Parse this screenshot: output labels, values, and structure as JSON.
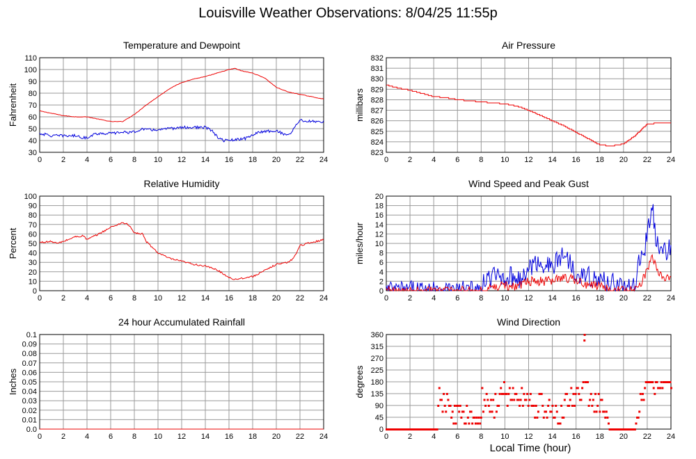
{
  "page": {
    "title": "Louisville Weather Observations: 8/04/25 11:55p",
    "xlabel": "Local Time (hour)"
  },
  "colors": {
    "red": "#ee0000",
    "blue": "#0000dd",
    "grid": "#999999"
  },
  "chart_data": [
    {
      "type": "line",
      "title": "Temperature and Dewpoint",
      "ylabel": "Fahrenheit",
      "xlim": [
        0,
        24
      ],
      "ylim": [
        30,
        110
      ],
      "xticks": [
        0,
        2,
        4,
        6,
        8,
        10,
        12,
        14,
        16,
        18,
        20,
        22,
        24
      ],
      "yticks": [
        30,
        40,
        50,
        60,
        70,
        80,
        90,
        100,
        110
      ],
      "grid": true,
      "series": [
        {
          "color": "red",
          "noise": 0.2,
          "x": [
            0,
            1,
            2,
            3,
            4,
            5,
            6,
            7,
            8,
            9,
            10,
            11,
            12,
            13,
            14,
            15,
            16,
            16.5,
            17,
            18,
            19,
            20,
            20.5,
            21,
            22,
            23,
            24
          ],
          "y": [
            65,
            63,
            61,
            60,
            60,
            58,
            56,
            56,
            62,
            70,
            77,
            84,
            89,
            92,
            94,
            97,
            100,
            101,
            99,
            97,
            93,
            85,
            83,
            81,
            79,
            77,
            75
          ]
        },
        {
          "color": "blue",
          "noise": 1.2,
          "x": [
            0,
            1,
            2,
            3,
            3.9,
            4.5,
            5,
            6,
            7,
            8,
            8.6,
            9,
            10,
            11,
            12,
            13,
            14,
            14.6,
            15,
            15.5,
            16,
            17,
            17.5,
            18,
            19,
            20,
            20.8,
            21.3,
            21.6,
            22,
            23,
            24
          ],
          "y": [
            46,
            44,
            44,
            44,
            42,
            45,
            46,
            46,
            47,
            47,
            50,
            49,
            49,
            50,
            51,
            51,
            51,
            48,
            43,
            40,
            40,
            41,
            42,
            45,
            48,
            48,
            45,
            46,
            53,
            57,
            56,
            56
          ]
        }
      ]
    },
    {
      "type": "line",
      "title": "Air Pressure",
      "ylabel": "millibars",
      "xlim": [
        0,
        24
      ],
      "ylim": [
        823,
        832
      ],
      "xticks": [
        0,
        2,
        4,
        6,
        8,
        10,
        12,
        14,
        16,
        18,
        20,
        22,
        24
      ],
      "yticks": [
        823,
        824,
        825,
        826,
        827,
        828,
        829,
        830,
        831,
        832
      ],
      "grid": true,
      "series": [
        {
          "color": "red",
          "step": 0.1,
          "x": [
            0,
            1,
            2,
            3,
            4,
            5,
            6,
            7,
            8,
            9,
            10,
            11,
            12,
            13,
            14,
            15,
            16,
            17,
            18,
            19,
            20,
            21,
            21.5,
            22,
            23,
            24
          ],
          "y": [
            829.4,
            829.1,
            828.9,
            828.6,
            828.3,
            828.2,
            828,
            827.9,
            827.8,
            827.7,
            827.6,
            827.4,
            827,
            826.5,
            826,
            825.5,
            824.9,
            824.3,
            823.7,
            823.6,
            823.8,
            824.6,
            825.2,
            825.7,
            825.8,
            825.8
          ]
        }
      ]
    },
    {
      "type": "line",
      "title": "Relative Humidity",
      "ylabel": "Percent",
      "xlim": [
        0,
        24
      ],
      "ylim": [
        0,
        100
      ],
      "xticks": [
        0,
        2,
        4,
        6,
        8,
        10,
        12,
        14,
        16,
        18,
        20,
        22,
        24
      ],
      "yticks": [
        0,
        10,
        20,
        30,
        40,
        50,
        60,
        70,
        80,
        90,
        100
      ],
      "grid": true,
      "series": [
        {
          "color": "red",
          "noise": 0.9,
          "x": [
            0,
            1,
            1.5,
            2,
            3,
            3.7,
            4,
            5,
            6,
            7,
            7.5,
            8,
            8.7,
            9,
            10,
            11,
            12,
            13,
            14,
            15,
            16,
            16.5,
            17,
            18,
            19,
            20,
            21,
            21.5,
            22,
            23,
            24
          ],
          "y": [
            51,
            52,
            50,
            52,
            57,
            58,
            54,
            60,
            67,
            72,
            70,
            61,
            60,
            52,
            40,
            34,
            31,
            28,
            26,
            22,
            14,
            12,
            13,
            15,
            21,
            28,
            30,
            35,
            48,
            51,
            54
          ]
        }
      ]
    },
    {
      "type": "line",
      "title": "Wind Speed and Peak Gust",
      "ylabel": "miles/hour",
      "xlim": [
        0,
        24
      ],
      "ylim": [
        0,
        20
      ],
      "xticks": [
        0,
        2,
        4,
        6,
        8,
        10,
        12,
        14,
        16,
        18,
        20,
        22,
        24
      ],
      "yticks": [
        0,
        2,
        4,
        6,
        8,
        10,
        12,
        14,
        16,
        18,
        20
      ],
      "grid": true,
      "series": [
        {
          "color": "blue",
          "noise": 2.2,
          "clip": true,
          "x": [
            0,
            3.9,
            4.0,
            4.1,
            4.3,
            4.4,
            4.5,
            8.0,
            8.3,
            9,
            10,
            11,
            11.5,
            12,
            13,
            14,
            15,
            15.5,
            16,
            17,
            18,
            19,
            20,
            20.8,
            21.3,
            21.8,
            22,
            22.4,
            22.8,
            23.3,
            23.8,
            24
          ],
          "y": [
            0,
            0,
            2,
            0,
            2,
            0,
            0,
            0,
            2,
            3,
            3,
            3,
            2,
            5,
            6,
            5,
            8,
            6,
            4,
            3,
            2,
            2,
            1,
            0,
            6,
            9,
            12,
            18,
            10,
            8,
            9,
            8
          ]
        },
        {
          "color": "red",
          "noise": 1.0,
          "clip": true,
          "x": [
            0,
            8.5,
            9,
            10,
            11,
            12,
            13,
            14,
            15,
            16,
            17,
            18,
            19,
            20,
            20.8,
            21.3,
            22,
            22.4,
            23,
            23.5,
            24
          ],
          "y": [
            0,
            0,
            1,
            1,
            1,
            2,
            2,
            2,
            3,
            2,
            1,
            1,
            0,
            0,
            0,
            1,
            4,
            7,
            4,
            3,
            3
          ]
        }
      ]
    },
    {
      "type": "line",
      "title": "24 hour Accumulated Rainfall",
      "ylabel": "Inches",
      "xlim": [
        0,
        24
      ],
      "ylim": [
        0,
        0.1
      ],
      "xticks": [
        0,
        2,
        4,
        6,
        8,
        10,
        12,
        14,
        16,
        18,
        20,
        22,
        24
      ],
      "yticks": [
        "0.0",
        "0.01",
        "0.02",
        "0.03",
        "0.04",
        "0.05",
        "0.06",
        "0.07",
        "0.08",
        "0.09",
        "0.1"
      ],
      "grid": true,
      "series": [
        {
          "color": "red",
          "x": [
            0,
            24
          ],
          "y": [
            0,
            0
          ]
        }
      ]
    },
    {
      "type": "scatter",
      "title": "Wind Direction",
      "ylabel": "degrees",
      "xlim": [
        0,
        24
      ],
      "ylim": [
        0,
        360
      ],
      "xticks": [
        0,
        2,
        4,
        6,
        8,
        10,
        12,
        14,
        16,
        18,
        20,
        22,
        24
      ],
      "yticks": [
        0,
        45,
        90,
        135,
        180,
        225,
        270,
        315,
        360
      ],
      "grid": true,
      "series": [
        {
          "color": "red",
          "count": 260,
          "x": [
            0,
            4.3,
            4.4,
            7.9,
            8.0,
            8.6,
            9,
            10,
            11,
            12,
            12.5,
            13,
            14,
            14.5,
            15,
            16,
            16.5,
            16.7,
            17,
            18,
            18.8,
            19,
            20,
            21,
            21.3,
            22,
            23,
            24
          ],
          "y": [
            0,
            0,
            112,
            0,
            112,
            90,
            90,
            135,
            120,
            110,
            90,
            100,
            60,
            30,
            90,
            140,
            150,
            360,
            110,
            90,
            0,
            0,
            0,
            0,
            100,
            158,
            180,
            180
          ]
        }
      ]
    }
  ]
}
